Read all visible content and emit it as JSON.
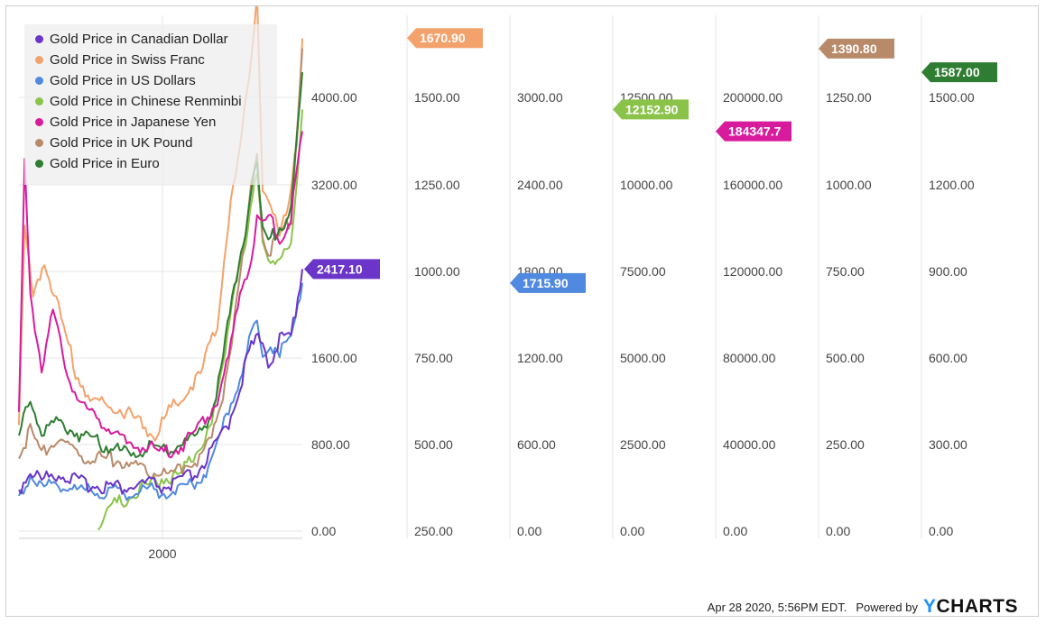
{
  "chart_data": {
    "type": "line",
    "x_tick_labels": [
      "2000"
    ],
    "series": [
      {
        "name": "Gold Price in Canadian Dollar",
        "color": "#6a35c8",
        "last_value": "2417.10",
        "axis_ticks": [
          "0.00",
          "800.00",
          "1600.00",
          "2400.00",
          "3200.00",
          "4000.00"
        ],
        "points": [
          [
            0,
            380
          ],
          [
            0.04,
            560
          ],
          [
            0.08,
            470
          ],
          [
            0.14,
            540
          ],
          [
            0.22,
            440
          ],
          [
            0.3,
            420
          ],
          [
            0.38,
            400
          ],
          [
            0.46,
            440
          ],
          [
            0.52,
            400
          ],
          [
            0.56,
            450
          ],
          [
            0.62,
            520
          ],
          [
            0.68,
            720
          ],
          [
            0.74,
            1000
          ],
          [
            0.78,
            1350
          ],
          [
            0.82,
            1700
          ],
          [
            0.86,
            1800
          ],
          [
            0.88,
            1550
          ],
          [
            0.92,
            1750
          ],
          [
            0.96,
            1800
          ],
          [
            1.0,
            2417
          ]
        ]
      },
      {
        "name": "Gold Price in Swiss Franc",
        "color": "#f4a26b",
        "last_value": "1670.90",
        "axis_ticks": [
          "250.00",
          "500.00",
          "750.00",
          "1000.00",
          "1250.00",
          "1500.00"
        ],
        "points": [
          [
            0,
            560
          ],
          [
            0.02,
            1120
          ],
          [
            0.05,
            920
          ],
          [
            0.09,
            1030
          ],
          [
            0.14,
            890
          ],
          [
            0.2,
            710
          ],
          [
            0.26,
            620
          ],
          [
            0.34,
            610
          ],
          [
            0.42,
            570
          ],
          [
            0.48,
            525
          ],
          [
            0.52,
            585
          ],
          [
            0.58,
            640
          ],
          [
            0.64,
            700
          ],
          [
            0.7,
            850
          ],
          [
            0.74,
            1150
          ],
          [
            0.78,
            1350
          ],
          [
            0.82,
            1620
          ],
          [
            0.84,
            1800
          ],
          [
            0.86,
            1250
          ],
          [
            0.88,
            1200
          ],
          [
            0.92,
            1100
          ],
          [
            0.95,
            1200
          ],
          [
            0.98,
            1380
          ],
          [
            1.0,
            1670
          ]
        ]
      },
      {
        "name": "Gold Price in US Dollars",
        "color": "#4f8ae0",
        "last_value": "1715.90",
        "axis_ticks": [
          "0.00",
          "600.00",
          "1200.00",
          "1800.00",
          "2400.00",
          "3000.00"
        ],
        "points": [
          [
            0,
            190
          ],
          [
            0.04,
            410
          ],
          [
            0.08,
            300
          ],
          [
            0.14,
            330
          ],
          [
            0.22,
            270
          ],
          [
            0.3,
            270
          ],
          [
            0.38,
            270
          ],
          [
            0.46,
            290
          ],
          [
            0.52,
            270
          ],
          [
            0.56,
            300
          ],
          [
            0.62,
            330
          ],
          [
            0.66,
            420
          ],
          [
            0.7,
            600
          ],
          [
            0.74,
            850
          ],
          [
            0.78,
            1050
          ],
          [
            0.82,
            1350
          ],
          [
            0.84,
            1450
          ],
          [
            0.86,
            1200
          ],
          [
            0.88,
            1300
          ],
          [
            0.92,
            1250
          ],
          [
            0.96,
            1300
          ],
          [
            1.0,
            1716
          ]
        ]
      },
      {
        "name": "Gold Price in Chinese Renminbi",
        "color": "#8bc34a",
        "last_value": "12152.90",
        "axis_ticks": [
          "0.00",
          "2500.00",
          "5000.00",
          "7500.00",
          "10000.00",
          "12500.00"
        ],
        "points": [
          [
            0.28,
            100
          ],
          [
            0.32,
            700
          ],
          [
            0.38,
            900
          ],
          [
            0.46,
            1300
          ],
          [
            0.52,
            1600
          ],
          [
            0.56,
            1500
          ],
          [
            0.6,
            2000
          ],
          [
            0.64,
            2400
          ],
          [
            0.68,
            3000
          ],
          [
            0.72,
            4800
          ],
          [
            0.76,
            7200
          ],
          [
            0.8,
            8200
          ],
          [
            0.84,
            10500
          ],
          [
            0.86,
            8400
          ],
          [
            0.88,
            8000
          ],
          [
            0.92,
            7700
          ],
          [
            0.96,
            8200
          ],
          [
            1.0,
            12153
          ]
        ]
      },
      {
        "name": "Gold Price in Japanese Yen",
        "color": "#d81b9c",
        "last_value": "184347.7",
        "axis_ticks": [
          "0.00",
          "40000.00",
          "80000.00",
          "120000.00",
          "160000.00",
          "200000.00"
        ],
        "points": [
          [
            0,
            52000
          ],
          [
            0.02,
            170000
          ],
          [
            0.04,
            110000
          ],
          [
            0.08,
            75000
          ],
          [
            0.12,
            100000
          ],
          [
            0.18,
            70000
          ],
          [
            0.24,
            55000
          ],
          [
            0.3,
            50000
          ],
          [
            0.38,
            40000
          ],
          [
            0.46,
            38000
          ],
          [
            0.52,
            36000
          ],
          [
            0.58,
            40000
          ],
          [
            0.64,
            48000
          ],
          [
            0.7,
            60000
          ],
          [
            0.74,
            80000
          ],
          [
            0.78,
            110000
          ],
          [
            0.82,
            125000
          ],
          [
            0.84,
            145000
          ],
          [
            0.86,
            140000
          ],
          [
            0.88,
            145000
          ],
          [
            0.92,
            135000
          ],
          [
            0.96,
            145000
          ],
          [
            1.0,
            184348
          ]
        ]
      },
      {
        "name": "Gold Price in UK Pound",
        "color": "#b98a6a",
        "last_value": "1390.80",
        "axis_ticks": [
          "0.00",
          "250.00",
          "500.00",
          "750.00",
          "1000.00",
          "1250.00"
        ],
        "points": [
          [
            0,
            210
          ],
          [
            0.04,
            290
          ],
          [
            0.08,
            230
          ],
          [
            0.14,
            270
          ],
          [
            0.22,
            220
          ],
          [
            0.3,
            210
          ],
          [
            0.38,
            200
          ],
          [
            0.46,
            170
          ],
          [
            0.52,
            160
          ],
          [
            0.56,
            180
          ],
          [
            0.62,
            200
          ],
          [
            0.68,
            260
          ],
          [
            0.72,
            400
          ],
          [
            0.76,
            600
          ],
          [
            0.8,
            850
          ],
          [
            0.82,
            1000
          ],
          [
            0.84,
            1100
          ],
          [
            0.86,
            850
          ],
          [
            0.88,
            800
          ],
          [
            0.92,
            850
          ],
          [
            0.96,
            900
          ],
          [
            1.0,
            1391
          ]
        ]
      },
      {
        "name": "Gold Price in Euro",
        "color": "#2e7d32",
        "last_value": "1587.00",
        "axis_ticks": [
          "0.00",
          "300.00",
          "600.00",
          "900.00",
          "1200.00",
          "1500.00"
        ],
        "points": [
          [
            0,
            330
          ],
          [
            0.04,
            450
          ],
          [
            0.08,
            350
          ],
          [
            0.14,
            380
          ],
          [
            0.22,
            330
          ],
          [
            0.3,
            300
          ],
          [
            0.38,
            270
          ],
          [
            0.46,
            290
          ],
          [
            0.52,
            280
          ],
          [
            0.56,
            300
          ],
          [
            0.62,
            320
          ],
          [
            0.68,
            400
          ],
          [
            0.72,
            600
          ],
          [
            0.76,
            850
          ],
          [
            0.8,
            1050
          ],
          [
            0.82,
            1200
          ],
          [
            0.84,
            1250
          ],
          [
            0.86,
            1050
          ],
          [
            0.88,
            1000
          ],
          [
            0.92,
            1050
          ],
          [
            0.96,
            1100
          ],
          [
            1.0,
            1587
          ]
        ]
      }
    ]
  },
  "footer": {
    "timestamp": "Apr 28 2020, 5:56PM EDT.",
    "powered_by": "Powered by",
    "logo_y": "Y",
    "logo_rest": "CHARTS"
  }
}
